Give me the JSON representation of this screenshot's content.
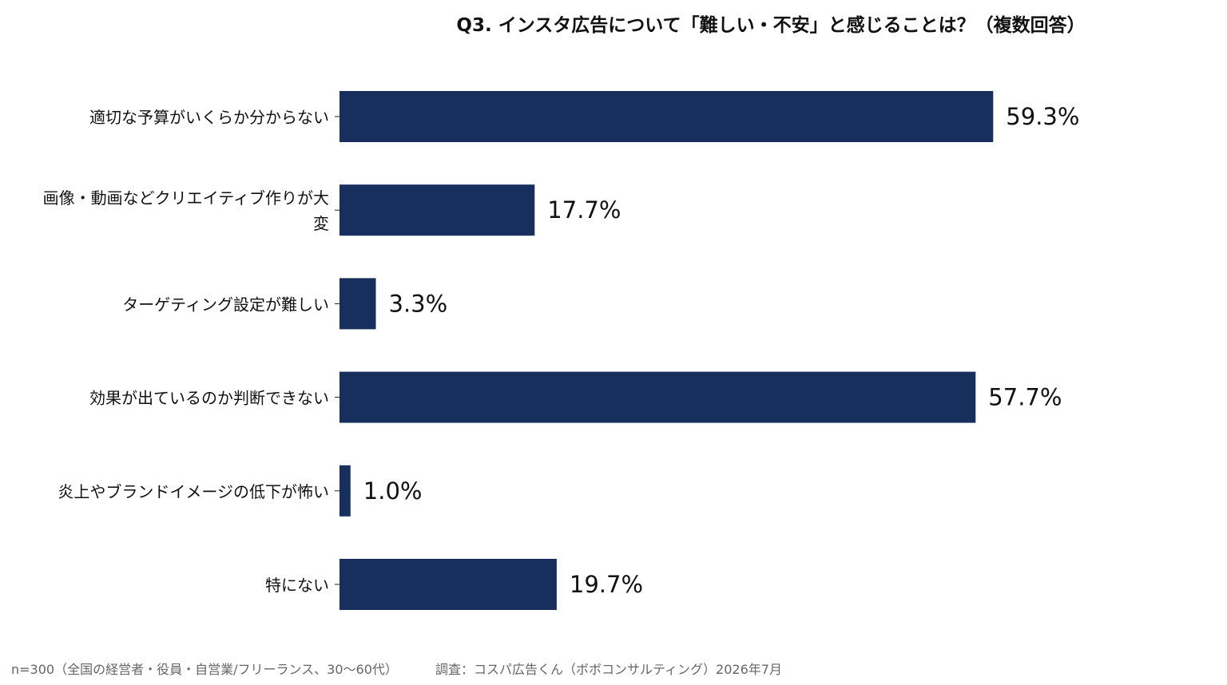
{
  "chart_data": {
    "type": "bar",
    "orientation": "horizontal",
    "title": "Q3. インスタ広告について「難しい・不安」と感じることは？（複数回答）",
    "categories": [
      [
        "適切な予算がいくらか分からない"
      ],
      [
        "画像・動画などクリエイティブ作りが大",
        "変"
      ],
      [
        "ターゲティング設定が難しい"
      ],
      [
        "効果が出ているのか判断できない"
      ],
      [
        "炎上やブランドイメージの低下が怖い"
      ],
      [
        "特にない"
      ]
    ],
    "values": [
      59.3,
      17.7,
      3.3,
      57.7,
      1.0,
      19.7
    ],
    "value_labels": [
      "59.3%",
      "17.7%",
      "3.3%",
      "57.7%",
      "1.0%",
      "19.7%"
    ],
    "unit": "%",
    "xlim": [
      0,
      100
    ],
    "bar_color": "#172f5d",
    "grid": false,
    "legend": "none"
  },
  "footer": {
    "sample_note": "n=300（全国の経営者・役員・自営業/フリーランス、30〜60代）",
    "source_note": "調査：コスパ広告くん（ボボコンサルティング）2026年7月"
  },
  "colors": {
    "bar": "#172f5d",
    "text": "#111111",
    "footer": "#666666",
    "background": "#ffffff"
  }
}
